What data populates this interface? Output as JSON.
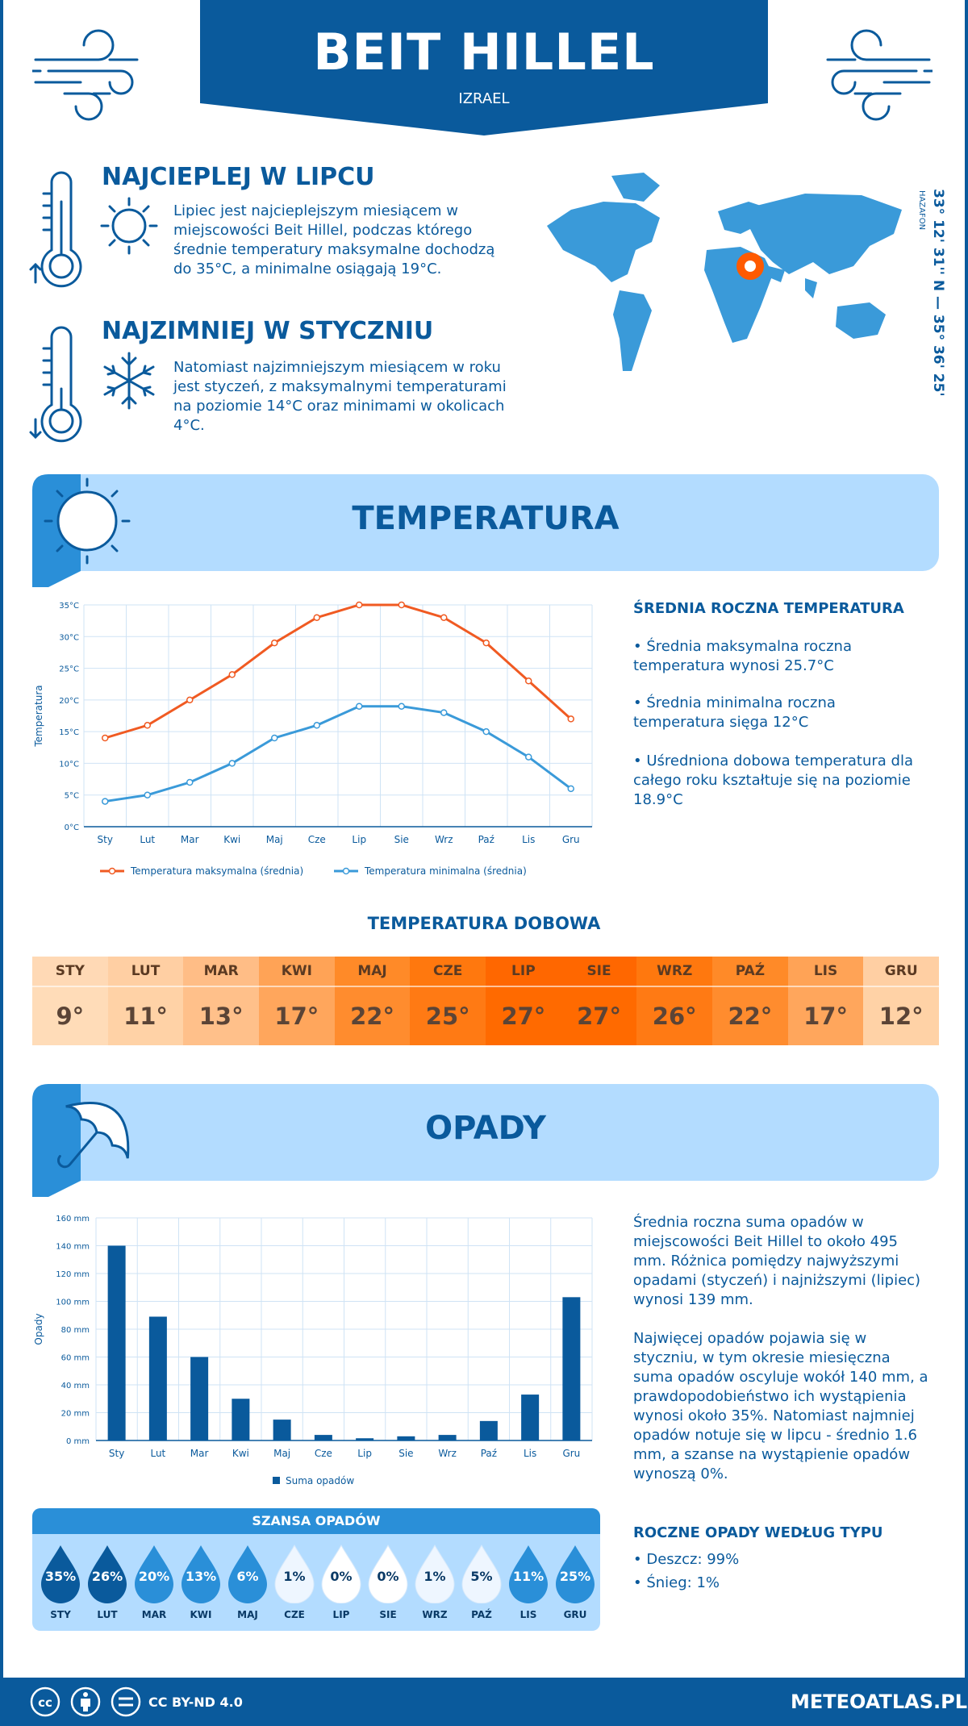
{
  "header": {
    "title": "BEIT HILLEL",
    "subtitle": "IZRAEL"
  },
  "hottest": {
    "heading": "NAJCIEPLEJ W LIPCU",
    "text": "Lipiec jest najcieplejszym miesiącem w miejscowości Beit Hillel, podczas którego średnie temperatury maksymalne dochodzą do 35°C, a minimalne osiągają 19°C."
  },
  "coldest": {
    "heading": "NAJZIMNIEJ W STYCZNIU",
    "text": "Natomiast najzimniejszym miesiącem w roku jest styczeń, z maksymalnymi temperaturami na poziomie 14°C oraz minimami w okolicach 4°C."
  },
  "location": {
    "coordinates": "33° 12' 31'' N — 35° 36' 25'' E",
    "region": "HAZAFON"
  },
  "temperature_section": {
    "title": "TEMPERATURA",
    "stats_heading": "ŚREDNIA ROCZNA TEMPERATURA",
    "stat1": "• Średnia maksymalna roczna temperatura wynosi 25.7°C",
    "stat2": "• Średnia minimalna roczna temperatura sięga 12°C",
    "stat3": "• Uśredniona dobowa temperatura dla całego roku kształtuje się na poziomie 18.9°C"
  },
  "daily": {
    "title": "TEMPERATURA DOBOWA",
    "months": [
      "STY",
      "LUT",
      "MAR",
      "KWI",
      "MAJ",
      "CZE",
      "LIP",
      "SIE",
      "WRZ",
      "PAŹ",
      "LIS",
      "GRU"
    ],
    "values": [
      "9°",
      "11°",
      "13°",
      "17°",
      "22°",
      "25°",
      "27°",
      "27°",
      "26°",
      "22°",
      "17°",
      "12°"
    ],
    "colors": [
      "#ffdcb8",
      "#ffd2a6",
      "#ffc08a",
      "#ffa65c",
      "#ff8c2e",
      "#ff7a14",
      "#ff6a00",
      "#ff6a00",
      "#ff7a14",
      "#ff8c2e",
      "#ffa65c",
      "#ffd2a6"
    ],
    "head_colors": [
      "#ffd9b5",
      "#ffcfa3",
      "#ffbd86",
      "#ffa356",
      "#ff8a28",
      "#ff780e",
      "#ff6700",
      "#ff6700",
      "#ff780e",
      "#ff8a28",
      "#ffa356",
      "#ffcfa3"
    ]
  },
  "precip_section": {
    "title": "OPADY",
    "text1": "Średnia roczna suma opadów w miejscowości Beit Hillel to około 495 mm. Różnica pomiędzy najwyższymi opadami (styczeń) i najniższymi (lipiec) wynosi 139 mm.",
    "text2": "Najwięcej opadów pojawia się w styczniu, w tym okresie miesięczna suma opadów oscyluje wokół 140 mm, a prawdopodobieństwo ich wystąpienia wynosi około 35%. Natomiast najmniej opadów notuje się w lipcu - średnio 1.6 mm, a szanse na wystąpienie opadów wynoszą 0%.",
    "type_heading": "ROCZNE OPADY WEDŁUG TYPU",
    "rain": "• Deszcz: 99%",
    "snow": "• Śnieg: 1%"
  },
  "chance": {
    "title": "SZANSA OPADÓW",
    "months": [
      "STY",
      "LUT",
      "MAR",
      "KWI",
      "MAJ",
      "CZE",
      "LIP",
      "SIE",
      "WRZ",
      "PAŹ",
      "LIS",
      "GRU"
    ],
    "values": [
      "35%",
      "26%",
      "20%",
      "13%",
      "6%",
      "1%",
      "0%",
      "0%",
      "1%",
      "5%",
      "11%",
      "25%"
    ],
    "fill_colors": [
      "#0a5a9c",
      "#0a5a9c",
      "#2a8fd8",
      "#2a8fd8",
      "#2a8fd8",
      "#eef6ff",
      "#ffffff",
      "#ffffff",
      "#eef6ff",
      "#eef6ff",
      "#2a8fd8",
      "#2a8fd8"
    ],
    "text_colors": [
      "#ffffff",
      "#ffffff",
      "#ffffff",
      "#ffffff",
      "#ffffff",
      "#0a3a66",
      "#0a3a66",
      "#0a3a66",
      "#0a3a66",
      "#0a3a66",
      "#ffffff",
      "#ffffff"
    ]
  },
  "chart_data": [
    {
      "type": "line",
      "categories": [
        "Sty",
        "Lut",
        "Mar",
        "Kwi",
        "Maj",
        "Cze",
        "Lip",
        "Sie",
        "Wrz",
        "Paź",
        "Lis",
        "Gru"
      ],
      "series": [
        {
          "name": "Temperatura maksymalna (średnia)",
          "values": [
            14,
            16,
            20,
            24,
            29,
            33,
            35,
            35,
            33,
            29,
            23,
            17
          ],
          "color": "#f05a22"
        },
        {
          "name": "Temperatura minimalna (średnia)",
          "values": [
            4,
            5,
            7,
            10,
            14,
            16,
            19,
            19,
            18,
            15,
            11,
            6
          ],
          "color": "#3a9ad9"
        }
      ],
      "ylabel": "Temperatura",
      "ylim": [
        0,
        35
      ],
      "yticks": [
        "0°C",
        "5°C",
        "10°C",
        "15°C",
        "20°C",
        "25°C",
        "30°C",
        "35°C"
      ],
      "grid": true,
      "legend": "bottom"
    },
    {
      "type": "bar",
      "categories": [
        "Sty",
        "Lut",
        "Mar",
        "Kwi",
        "Maj",
        "Cze",
        "Lip",
        "Sie",
        "Wrz",
        "Paź",
        "Lis",
        "Gru"
      ],
      "series": [
        {
          "name": "Suma opadów",
          "values": [
            140,
            89,
            60,
            30,
            15,
            4,
            1.6,
            3,
            4,
            14,
            33,
            103
          ],
          "color": "#0a5a9c"
        }
      ],
      "ylabel": "Opady",
      "ylim": [
        0,
        160
      ],
      "yticks": [
        "0 mm",
        "20 mm",
        "40 mm",
        "60 mm",
        "80 mm",
        "100 mm",
        "120 mm",
        "140 mm",
        "160 mm"
      ],
      "grid": true,
      "legend": "bottom"
    }
  ],
  "footer": {
    "license": "CC BY-ND 4.0",
    "site": "METEOATLAS.PL"
  }
}
